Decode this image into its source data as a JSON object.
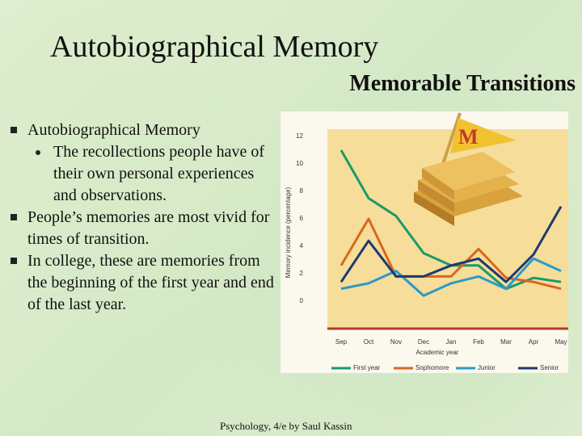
{
  "slide": {
    "title": "Autobiographical Memory",
    "subtitle": "Memorable Transitions",
    "bullets": [
      {
        "text": "Autobiographical Memory",
        "sub": [
          "The recollections people have of their own personal experiences and observations."
        ]
      },
      {
        "text": "People’s memories are most vivid for times of transition."
      },
      {
        "text": "In college, these are memories from the beginning of the first year and end of the last year."
      }
    ],
    "footer": "Psychology, 4/e by Saul Kassin"
  },
  "chart_data": {
    "type": "line",
    "illustration_label": "M",
    "categories": [
      "Sep",
      "Oct",
      "Nov",
      "Dec",
      "Jan",
      "Feb",
      "Mar",
      "Apr",
      "May"
    ],
    "x_label": "Academic year",
    "y_label": "Memory incidence (percentage)",
    "ylim": [
      -2,
      12
    ],
    "yticks": [
      0,
      2,
      4,
      6,
      8,
      10,
      12
    ],
    "grid": false,
    "series": [
      {
        "name": "First year",
        "color": "#1a9a6a",
        "values": [
          11.0,
          7.5,
          6.2,
          3.5,
          2.6,
          2.6,
          0.9,
          1.7,
          1.4
        ]
      },
      {
        "name": "Sophomore",
        "color": "#d9661f",
        "values": [
          2.6,
          6.0,
          1.8,
          1.8,
          1.8,
          3.8,
          1.7,
          1.4,
          0.9
        ]
      },
      {
        "name": "Junior",
        "color": "#2a9ac8",
        "values": [
          0.9,
          1.3,
          2.2,
          0.4,
          1.3,
          1.8,
          0.9,
          3.1,
          2.2
        ]
      },
      {
        "name": "Senior",
        "color": "#1f3a6e",
        "values": [
          1.4,
          4.4,
          1.8,
          1.8,
          2.6,
          3.1,
          1.4,
          3.4,
          6.9
        ]
      }
    ]
  }
}
